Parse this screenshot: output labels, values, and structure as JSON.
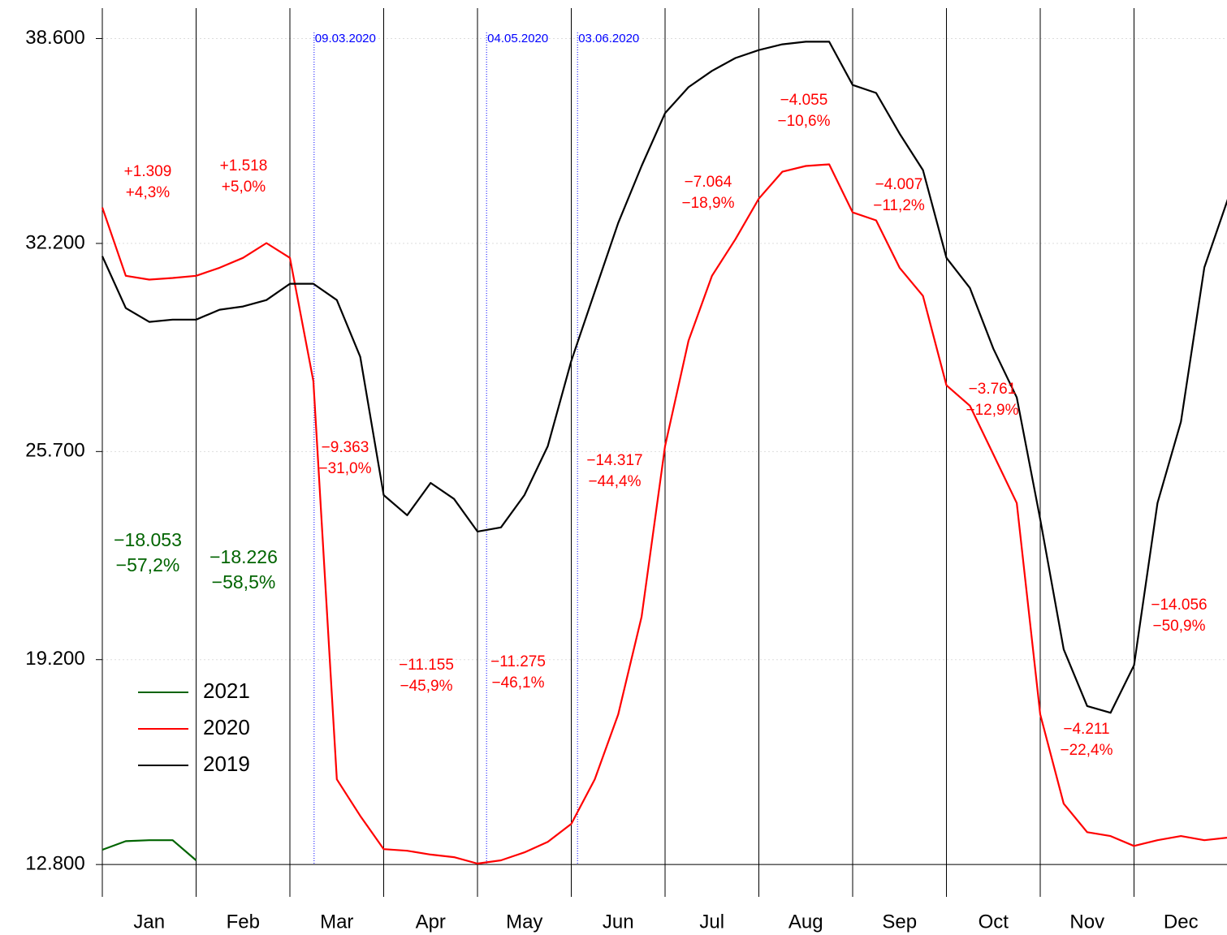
{
  "chart_data": {
    "type": "line",
    "categories": [
      "Jan",
      "Feb",
      "Mar",
      "Apr",
      "May",
      "Jun",
      "Jul",
      "Aug",
      "Sep",
      "Oct",
      "Nov",
      "Dec"
    ],
    "x": [
      0,
      0.25,
      0.5,
      0.75,
      1,
      1.25,
      1.5,
      1.75,
      2,
      2.25,
      2.5,
      2.75,
      3,
      3.25,
      3.5,
      3.75,
      4,
      4.25,
      4.5,
      4.75,
      5,
      5.25,
      5.5,
      5.75,
      6,
      6.25,
      6.5,
      6.75,
      7,
      7.25,
      7.5,
      7.75,
      8,
      8.25,
      8.5,
      8.75,
      9,
      9.25,
      9.5,
      9.75,
      10,
      10.25,
      10.5,
      10.75,
      11,
      11.25,
      11.5,
      11.75,
      12
    ],
    "xlim": [
      0,
      12
    ],
    "series": [
      {
        "name": "2021",
        "color": "#006400",
        "values": [
          13260,
          13530,
          13560,
          13560,
          12930,
          null,
          null,
          null,
          null,
          null,
          null,
          null,
          null,
          null,
          null,
          null,
          null,
          null,
          null,
          null,
          null,
          null,
          null,
          null,
          null,
          null,
          null,
          null,
          null,
          null,
          null,
          null,
          null,
          null,
          null,
          null,
          null,
          null,
          null,
          null,
          null,
          null,
          null,
          null,
          null,
          null,
          null,
          null,
          null
        ]
      },
      {
        "name": "2020",
        "color": "#ff0000",
        "values": [
          33320,
          31190,
          31070,
          31120,
          31190,
          31440,
          31750,
          32210,
          31750,
          27900,
          15460,
          14320,
          13280,
          13230,
          13110,
          13030,
          12830,
          12930,
          13180,
          13510,
          14070,
          15460,
          17490,
          20540,
          25870,
          29160,
          31190,
          32330,
          33600,
          34440,
          34620,
          34670,
          33170,
          32920,
          31440,
          30560,
          27770,
          27130,
          25610,
          24090,
          17490,
          14700,
          13810,
          13690,
          13380,
          13560,
          13690,
          13560,
          13640
        ]
      },
      {
        "name": "2019",
        "color": "#000000",
        "values": [
          31800,
          30180,
          29750,
          29820,
          29820,
          30130,
          30230,
          30430,
          30940,
          30940,
          30430,
          28660,
          24340,
          23710,
          24720,
          24220,
          23200,
          23330,
          24340,
          25870,
          28530,
          30690,
          32840,
          34620,
          36270,
          37080,
          37590,
          37990,
          38240,
          38420,
          38500,
          38500,
          37150,
          36900,
          35630,
          34490,
          31750,
          30810,
          28910,
          27390,
          23580,
          19520,
          17750,
          17540,
          19020,
          24090,
          26630,
          31450,
          33580
        ]
      }
    ],
    "ylim": [
      12500,
      39550
    ],
    "yticks": [
      {
        "value": 12800,
        "label": "12.800"
      },
      {
        "value": 19200,
        "label": "19.200"
      },
      {
        "value": 25700,
        "label": "25.700"
      },
      {
        "value": 32200,
        "label": "32.200"
      },
      {
        "value": 38600,
        "label": "38.600"
      }
    ],
    "grid": true,
    "legend": "lower left",
    "date_markers": [
      "09.03.2020",
      "04.05.2020",
      "03.06.2020"
    ],
    "date_marker_color": "#0000ff",
    "annotations": [
      {
        "lines": [
          "+1.309",
          "+4,3%"
        ],
        "color": "#ff0000"
      },
      {
        "lines": [
          "+1.518",
          "+5,0%"
        ],
        "color": "#ff0000"
      },
      {
        "lines": [
          "−18.053",
          "−57,2%"
        ],
        "color": "#006400"
      },
      {
        "lines": [
          "−18.226",
          "−58,5%"
        ],
        "color": "#006400"
      },
      {
        "lines": [
          "−9.363",
          "−31,0%"
        ],
        "color": "#ff0000"
      },
      {
        "lines": [
          "−11.155",
          "−45,9%"
        ],
        "color": "#ff0000"
      },
      {
        "lines": [
          "−11.275",
          "−46,1%"
        ],
        "color": "#ff0000"
      },
      {
        "lines": [
          "−14.317",
          "−44,4%"
        ],
        "color": "#ff0000"
      },
      {
        "lines": [
          "−7.064",
          "−18,9%"
        ],
        "color": "#ff0000"
      },
      {
        "lines": [
          "−4.055",
          "−10,6%"
        ],
        "color": "#ff0000"
      },
      {
        "lines": [
          "−4.007",
          "−11,2%"
        ],
        "color": "#ff0000"
      },
      {
        "lines": [
          "−3.761",
          "−12,9%"
        ],
        "color": "#ff0000"
      },
      {
        "lines": [
          "−4.211",
          "−22,4%"
        ],
        "color": "#ff0000"
      },
      {
        "lines": [
          "−14.056",
          "−50,9%"
        ],
        "color": "#ff0000"
      }
    ]
  }
}
